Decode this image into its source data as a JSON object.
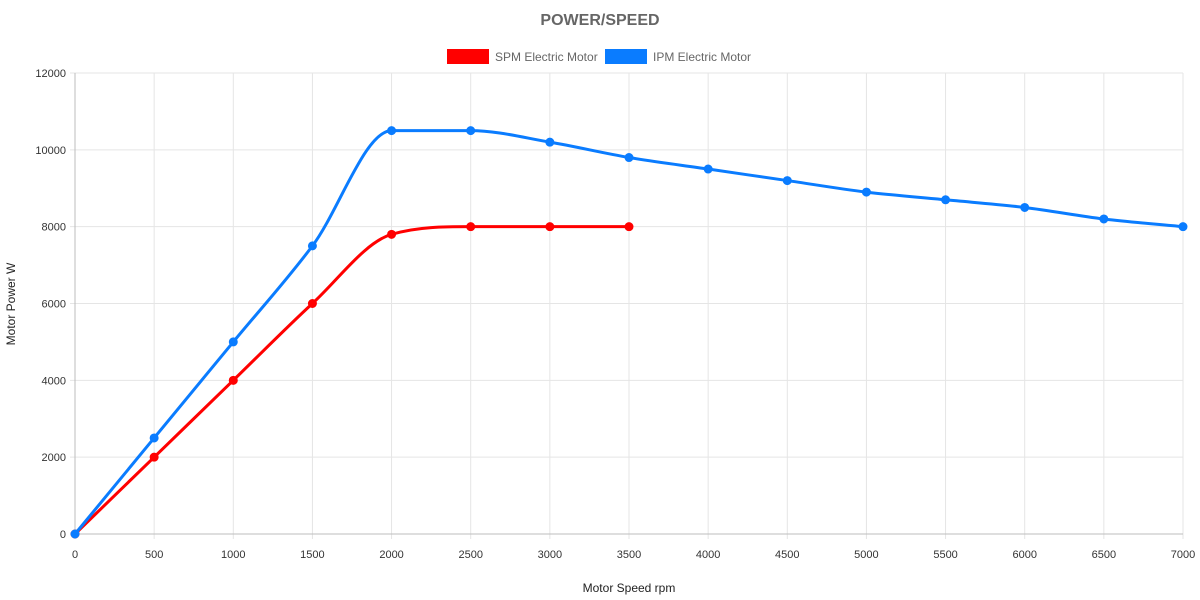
{
  "chart_data": {
    "type": "line",
    "title": "POWER/SPEED",
    "xlabel": "Motor Speed rpm",
    "ylabel": "Motor Power W",
    "xlim": [
      0,
      7000
    ],
    "ylim": [
      0,
      12000
    ],
    "x_ticks": [
      0,
      500,
      1000,
      1500,
      2000,
      2500,
      3000,
      3500,
      4000,
      4500,
      5000,
      5500,
      6000,
      6500,
      7000
    ],
    "y_ticks": [
      0,
      2000,
      4000,
      6000,
      8000,
      10000,
      12000
    ],
    "grid": true,
    "legend_position": "top-center",
    "series": [
      {
        "name": "SPM Electric Motor",
        "color": "#ff0000",
        "x": [
          0,
          500,
          1000,
          1500,
          2000,
          2500,
          3000,
          3500
        ],
        "y": [
          0,
          2000,
          4000,
          6000,
          7800,
          8000,
          8000,
          8000
        ]
      },
      {
        "name": "IPM Electric Motor",
        "color": "#0a7cff",
        "x": [
          0,
          500,
          1000,
          1500,
          2000,
          2500,
          3000,
          3500,
          4000,
          4500,
          5000,
          5500,
          6000,
          6500,
          7000
        ],
        "y": [
          0,
          2500,
          5000,
          7500,
          10500,
          10500,
          10200,
          9800,
          9500,
          9200,
          8900,
          8700,
          8500,
          8200,
          8000
        ]
      }
    ]
  }
}
